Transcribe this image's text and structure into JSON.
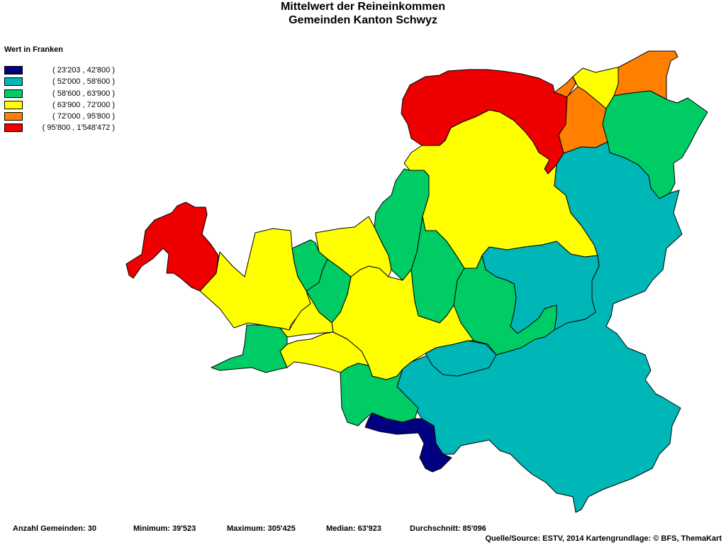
{
  "title": {
    "line1": "Mittelwert der Reineinkommen",
    "line2": "Gemeinden Kanton Schwyz"
  },
  "legend": {
    "title": "Wert in Franken",
    "classes": [
      {
        "label": "( 23'203 , 42'800 )",
        "color": "#000080"
      },
      {
        "label": "( 52'000 , 58'600 )",
        "color": "#00b7b7"
      },
      {
        "label": "( 58'600 , 63'900 )",
        "color": "#00cc66"
      },
      {
        "label": "( 63'900 , 72'000 )",
        "color": "#ffff00"
      },
      {
        "label": "( 72'000 , 95'800 )",
        "color": "#ff8000"
      },
      {
        "label": "( 95'800 , 1'548'472 )",
        "color": "#ee0000"
      }
    ]
  },
  "stats": {
    "count": "Anzahl Gemeinden: 30",
    "minimum": "Minimum: 39'523",
    "maximum": "Maximum: 305'425",
    "median": "Median: 63'923",
    "mean": "Durchschnitt: 85'096"
  },
  "source": "Quelle/Source: ESTV, 2014 Kartengrundlage: © BFS, ThemaKart"
}
